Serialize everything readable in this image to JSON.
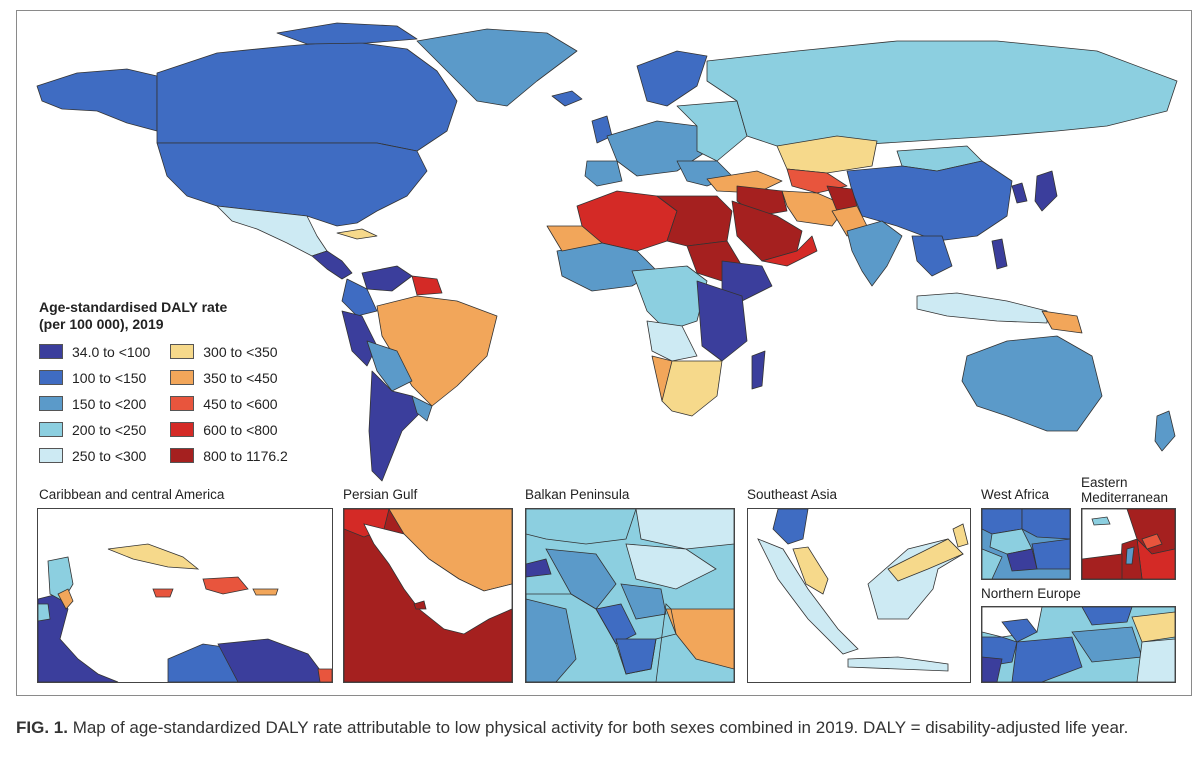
{
  "legend": {
    "title_line1": "Age-standardised DALY rate",
    "title_line2": "(per 100 000), 2019",
    "items": [
      {
        "label": "34.0 to <100",
        "color": "#3b3e9c"
      },
      {
        "label": "100 to <150",
        "color": "#3f6cc2"
      },
      {
        "label": "150 to <200",
        "color": "#5b9ac9"
      },
      {
        "label": "200 to <250",
        "color": "#8ccfe0"
      },
      {
        "label": "250 to <300",
        "color": "#cdeaf3"
      },
      {
        "label": "300 to <350",
        "color": "#f6d98b"
      },
      {
        "label": "350 to <450",
        "color": "#f2a65a"
      },
      {
        "label": "450 to <600",
        "color": "#e8553d"
      },
      {
        "label": "600 to <800",
        "color": "#d42a26"
      },
      {
        "label": "800 to 1176.2",
        "color": "#a5201f"
      }
    ]
  },
  "insets": {
    "caribbean": "Caribbean and central America",
    "persian_gulf": "Persian Gulf",
    "balkan": "Balkan Peninsula",
    "southeast_asia": "Southeast Asia",
    "west_africa": "West Africa",
    "eastern_med_line1": "Eastern",
    "eastern_med_line2": "Mediterranean",
    "northern_europe": "Northern Europe"
  },
  "caption": {
    "label": "FIG. 1.",
    "text": " Map of age-standardized DALY rate attributable to low physical activity for both sexes combined in 2019. DALY = disability-adjusted life year."
  }
}
